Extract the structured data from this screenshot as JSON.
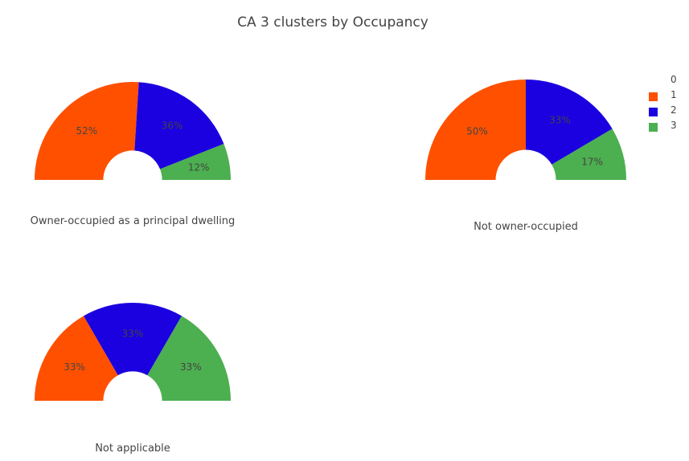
{
  "title": "CA 3 clusters by Occupancy",
  "chart_data": [
    {
      "type": "pie",
      "caption": "Owner-occupied as a principal dwelling",
      "labels": [
        "1",
        "2",
        "3"
      ],
      "values": [
        52,
        36,
        12
      ],
      "value_labels": [
        "52%",
        "36%",
        "12%"
      ],
      "hole_fraction": 0.3,
      "visible_arc_degrees": 180
    },
    {
      "type": "pie",
      "caption": "Not owner-occupied",
      "labels": [
        "1",
        "2",
        "3"
      ],
      "values": [
        50,
        33,
        17
      ],
      "value_labels": [
        "50%",
        "33%",
        "17%"
      ],
      "hole_fraction": 0.3,
      "visible_arc_degrees": 180
    },
    {
      "type": "pie",
      "caption": "Not applicable",
      "labels": [
        "1",
        "2",
        "3"
      ],
      "values": [
        33.3,
        33.3,
        33.3
      ],
      "value_labels": [
        "33%",
        "33%",
        "33%"
      ],
      "hole_fraction": 0.3,
      "visible_arc_degrees": 180
    }
  ],
  "legend": [
    {
      "label": "0",
      "color": "none"
    },
    {
      "label": "1",
      "color": "#ff5000"
    },
    {
      "label": "2",
      "color": "#1b00e0"
    },
    {
      "label": "3",
      "color": "#4caf50"
    }
  ],
  "colors": {
    "1": "#ff5000",
    "2": "#1b00e0",
    "3": "#4caf50"
  }
}
